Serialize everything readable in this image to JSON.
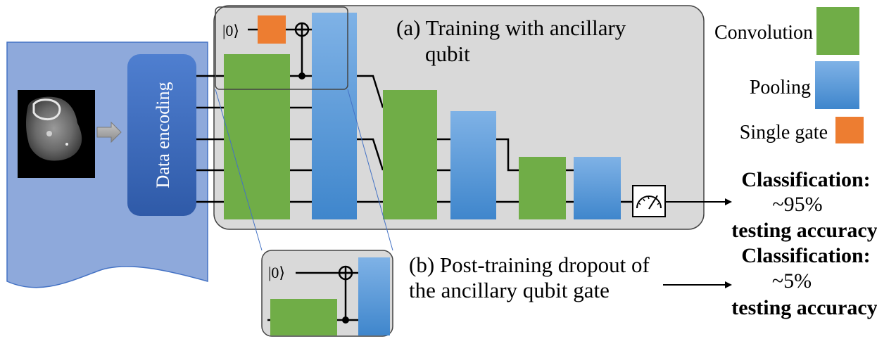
{
  "colors": {
    "convolution": "#70AD47",
    "pooling": "#5B9BD5",
    "single_gate": "#ED7D31",
    "encoding_box": "#4472C4",
    "input_panel": "#8EA9DB",
    "circuit_panel": "#D9D9D9"
  },
  "input": {
    "image_icon": "brain-scan-image",
    "arrow_icon": "right-arrow-icon"
  },
  "encoding": {
    "label": "Data encoding"
  },
  "circuit_a": {
    "title_line1": "(a) Training with ancillary",
    "title_line2": "qubit",
    "ket_label": "|0⟩",
    "measure_icon": "meter-icon"
  },
  "circuit_b": {
    "title_line1": "(b) Post-training dropout of",
    "title_line2": "the ancillary qubit gate",
    "ket_label": "|0⟩"
  },
  "legend": {
    "items": [
      {
        "label": "Convolution",
        "color": "#70AD47"
      },
      {
        "label": "Pooling",
        "color": "#5B9BD5"
      },
      {
        "label": "Single gate",
        "color": "#ED7D31"
      }
    ]
  },
  "results": {
    "a": {
      "title": "Classification:",
      "value": "~95%",
      "caption": "testing accuracy"
    },
    "b": {
      "title": "Classification:",
      "value": "~5%",
      "caption": "testing accuracy"
    }
  }
}
